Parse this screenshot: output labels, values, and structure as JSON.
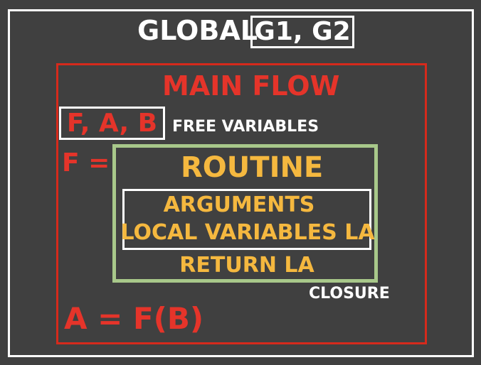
{
  "global": {
    "label": "GLOBAL",
    "variables": "G1, G2"
  },
  "main_flow": {
    "title": "MAIN FLOW",
    "free_variables_list": "F, A, B",
    "free_variables_label": "FREE VARIABLES",
    "assignment_prefix": "F ="
  },
  "closure": {
    "routine_title": "ROUTINE",
    "arguments": "ARGUMENTS",
    "local_variables": "LOCAL VARIABLES LA",
    "return": "RETURN LA",
    "label": "CLOSURE"
  },
  "call": "A = F(B)",
  "colors": {
    "background": "#404040",
    "red": "#e5342a",
    "gold": "#f5b83f",
    "green": "#a8c88a",
    "white": "#ffffff"
  }
}
